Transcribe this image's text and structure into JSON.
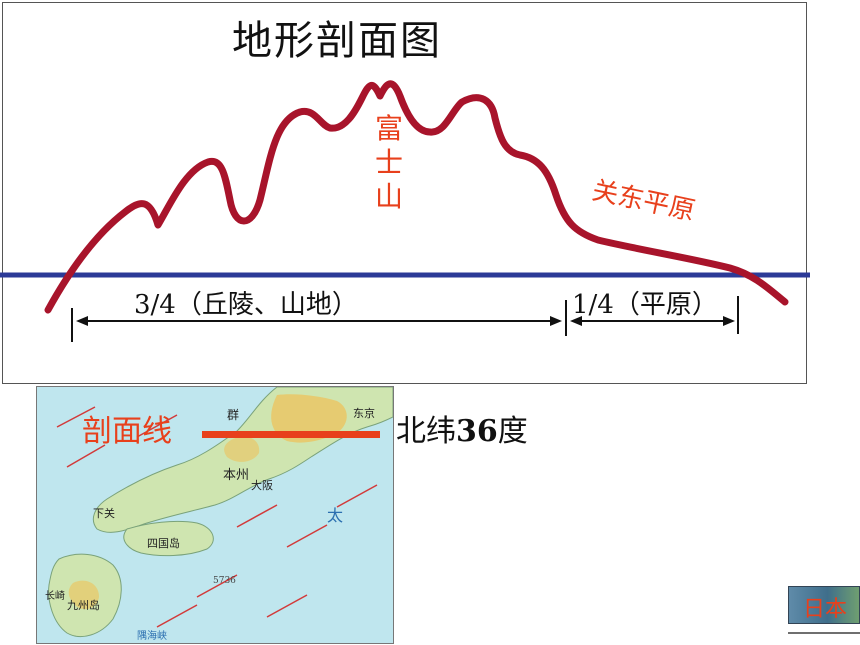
{
  "title": "地形剖面图",
  "labels": {
    "fuji": "富士山",
    "kanto": "关东平原",
    "hills_share": "3/4（丘陵、山地）",
    "plain_share": "1/4（平原）",
    "section_line": "剖面线",
    "latitude": "北纬36度",
    "latitude_prefix": "北纬",
    "latitude_number": "36",
    "latitude_unit": "度"
  },
  "map_labels": {
    "honshu": "本州",
    "tokyo": "东京",
    "osaka": "大阪",
    "shikoku": "四国岛",
    "kyushu": "九州岛",
    "shimonoseki": "下关",
    "nagasaki": "长崎",
    "pacific": "太",
    "gunma": "群",
    "depth": "5736",
    "strait": "隅海峡"
  },
  "nav_button": {
    "label": "日本"
  },
  "colors": {
    "profile_line": "#a8142b",
    "sea_level": "#2c3a97",
    "label_red": "#e8401c",
    "sea": "#bfe6ee",
    "land_low": "#cfe5b0",
    "land_high": "#e8c86a",
    "current_arrow": "#d23a3a"
  },
  "icons": [
    "left-arrow-icon",
    "right-arrow-icon",
    "current-arrow-icon"
  ]
}
